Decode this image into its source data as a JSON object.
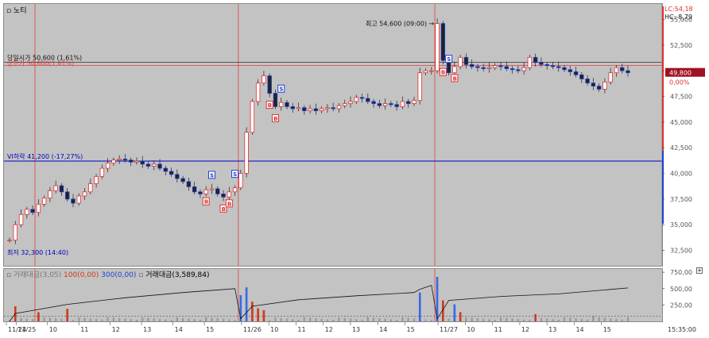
{
  "header": {
    "price_panel_title": "노티",
    "volume_panel_legend": {
      "item1": "거래대금(3,05)",
      "item2": "100(0,00)",
      "item3": "300(0,00)",
      "item4": "거래대금(3,589,84)"
    }
  },
  "right_axis": {
    "top_line1": "LC:54,18",
    "top_line2": "HC:-8,79",
    "current_price": "49,800",
    "current_change": "0,00%",
    "price_ticks": [
      "55,000",
      "52,500",
      "50,000",
      "47,500",
      "45,000",
      "42,500",
      "40,000",
      "37,500",
      "35,000",
      "32,500"
    ],
    "volume_ticks": [
      "750,00",
      "500,00",
      "250,00"
    ],
    "time_label": "15:35:00"
  },
  "annotations": {
    "high_label": "최고 54,600 (09:00)",
    "prev_close_label": "당일시가 50,600 (1,61%)",
    "upper_limit_label": "상한가 50,600(1,61%)",
    "vi_label": "VI하락 41,200 (-17,27%)",
    "low_label": "최저 32,300 (14:40)"
  },
  "x_axis_labels": [
    "11/24",
    "11/25",
    "10",
    "11",
    "12",
    "13",
    "14",
    "15",
    "11/26",
    "10",
    "11",
    "12",
    "13",
    "14",
    "15",
    "11/27",
    "10",
    "11",
    "12",
    "13",
    "14",
    "15"
  ],
  "colors": {
    "up": "#e03030",
    "down": "#2040d0",
    "price_bg": "#c3c3c3",
    "vi_line": "#0000c0",
    "day_sep": "#e04040",
    "current_box": "#a01020",
    "vol_bar_grey": "#9a9a9a",
    "vol_bar_red": "#d03818",
    "vol_bar_blue": "#3868e8"
  },
  "chart_data": {
    "type": "candlestick",
    "ylim": [
      31000,
      56500
    ],
    "y_ticks": [
      55000,
      52500,
      50000,
      47500,
      45000,
      42500,
      40000,
      37500,
      35000,
      32500
    ],
    "reference_levels": {
      "prev_close": 50600,
      "upper_limit": 50600,
      "vi_down": 41200,
      "high": 54600,
      "low": 32300,
      "current": 49800
    },
    "days": [
      "11/24",
      "11/25",
      "11/26",
      "11/27"
    ],
    "price_path": [
      [
        0,
        33500
      ],
      [
        1,
        35000
      ],
      [
        2,
        36000
      ],
      [
        3,
        36500
      ],
      [
        4,
        36200
      ],
      [
        5,
        37000
      ],
      [
        6,
        37600
      ],
      [
        7,
        38300
      ],
      [
        8,
        38800
      ],
      [
        9,
        38200
      ],
      [
        10,
        37500
      ],
      [
        11,
        37100
      ],
      [
        12,
        37800
      ],
      [
        13,
        38200
      ],
      [
        14,
        39000
      ],
      [
        15,
        39700
      ],
      [
        16,
        40500
      ],
      [
        17,
        41000
      ],
      [
        18,
        41300
      ],
      [
        19,
        41400
      ],
      [
        20,
        41300
      ],
      [
        21,
        41100
      ],
      [
        22,
        41200
      ],
      [
        23,
        40900
      ],
      [
        24,
        40700
      ],
      [
        25,
        40900
      ],
      [
        26,
        40500
      ],
      [
        27,
        40200
      ],
      [
        28,
        39900
      ],
      [
        29,
        39500
      ],
      [
        30,
        39200
      ],
      [
        31,
        38700
      ],
      [
        32,
        38200
      ],
      [
        33,
        38000
      ],
      [
        34,
        38400
      ],
      [
        35,
        38500
      ],
      [
        36,
        38000
      ],
      [
        37,
        37700
      ],
      [
        38,
        38200
      ],
      [
        39,
        38600
      ],
      [
        40,
        40000
      ],
      [
        41,
        44000
      ],
      [
        42,
        47000
      ],
      [
        43,
        48800
      ],
      [
        44,
        49500
      ],
      [
        45,
        47800
      ],
      [
        46,
        46500
      ],
      [
        47,
        46900
      ],
      [
        48,
        46500
      ],
      [
        49,
        46300
      ],
      [
        50,
        46400
      ],
      [
        51,
        46100
      ],
      [
        52,
        46300
      ],
      [
        53,
        46100
      ],
      [
        54,
        46300
      ],
      [
        55,
        46400
      ],
      [
        56,
        46300
      ],
      [
        57,
        46600
      ],
      [
        58,
        46800
      ],
      [
        59,
        47000
      ],
      [
        60,
        47400
      ],
      [
        61,
        47300
      ],
      [
        62,
        47000
      ],
      [
        63,
        46800
      ],
      [
        64,
        46600
      ],
      [
        65,
        46800
      ],
      [
        66,
        46700
      ],
      [
        67,
        46500
      ],
      [
        68,
        47000
      ],
      [
        69,
        46800
      ],
      [
        70,
        47100
      ],
      [
        71,
        49800
      ],
      [
        72,
        50000
      ],
      [
        73,
        50000
      ],
      [
        74,
        54600
      ],
      [
        75,
        51000
      ],
      [
        76,
        49800
      ],
      [
        77,
        50400
      ],
      [
        78,
        51300
      ],
      [
        79,
        50600
      ],
      [
        80,
        50400
      ],
      [
        81,
        50300
      ],
      [
        82,
        50200
      ],
      [
        83,
        50300
      ],
      [
        84,
        50500
      ],
      [
        85,
        50400
      ],
      [
        86,
        50200
      ],
      [
        87,
        50100
      ],
      [
        88,
        50000
      ],
      [
        89,
        50300
      ],
      [
        90,
        51300
      ],
      [
        91,
        50800
      ],
      [
        92,
        50600
      ],
      [
        93,
        50500
      ],
      [
        94,
        50400
      ],
      [
        95,
        50300
      ],
      [
        96,
        50100
      ],
      [
        97,
        49900
      ],
      [
        98,
        49600
      ],
      [
        99,
        49200
      ],
      [
        100,
        48800
      ],
      [
        101,
        48500
      ],
      [
        102,
        48200
      ],
      [
        103,
        48900
      ],
      [
        104,
        49800
      ],
      [
        105,
        50300
      ],
      [
        106,
        50000
      ],
      [
        107,
        49800
      ]
    ],
    "volume_ylim": [
      0,
      800
    ],
    "volume_ticks": [
      250,
      500,
      750
    ],
    "volume_spikes": [
      {
        "i": 1,
        "v": 230,
        "c": "red"
      },
      {
        "i": 5,
        "v": 140,
        "c": "red"
      },
      {
        "i": 10,
        "v": 190,
        "c": "red"
      },
      {
        "i": 40,
        "v": 400,
        "c": "blue"
      },
      {
        "i": 41,
        "v": 520,
        "c": "blue"
      },
      {
        "i": 42,
        "v": 300,
        "c": "red"
      },
      {
        "i": 43,
        "v": 200,
        "c": "red"
      },
      {
        "i": 44,
        "v": 170,
        "c": "red"
      },
      {
        "i": 71,
        "v": 440,
        "c": "blue"
      },
      {
        "i": 74,
        "v": 680,
        "c": "blue"
      },
      {
        "i": 75,
        "v": 320,
        "c": "red"
      },
      {
        "i": 77,
        "v": 260,
        "c": "blue"
      },
      {
        "i": 78,
        "v": 140,
        "c": "red"
      },
      {
        "i": 91,
        "v": 110,
        "c": "red"
      },
      {
        "i": 101,
        "v": 80,
        "c": "grey"
      }
    ],
    "cumulative_line": [
      [
        0,
        0
      ],
      [
        1,
        120
      ],
      [
        10,
        260
      ],
      [
        20,
        360
      ],
      [
        30,
        440
      ],
      [
        39,
        500
      ],
      [
        40,
        40
      ],
      [
        42,
        230
      ],
      [
        50,
        330
      ],
      [
        60,
        390
      ],
      [
        70,
        440
      ],
      [
        71,
        490
      ],
      [
        73,
        550
      ],
      [
        74,
        40
      ],
      [
        76,
        320
      ],
      [
        85,
        380
      ],
      [
        95,
        420
      ],
      [
        107,
        510
      ]
    ],
    "markers": [
      {
        "i": 37,
        "t": "B"
      },
      {
        "i": 34,
        "t": "B"
      },
      {
        "i": 35,
        "t": "S"
      },
      {
        "i": 38,
        "t": "B"
      },
      {
        "i": 39,
        "t": "S"
      },
      {
        "i": 45,
        "t": "B"
      },
      {
        "i": 46,
        "t": "B"
      },
      {
        "i": 47,
        "t": "S"
      },
      {
        "i": 75,
        "t": "B"
      },
      {
        "i": 76,
        "t": "S"
      },
      {
        "i": 77,
        "t": "B"
      }
    ]
  }
}
